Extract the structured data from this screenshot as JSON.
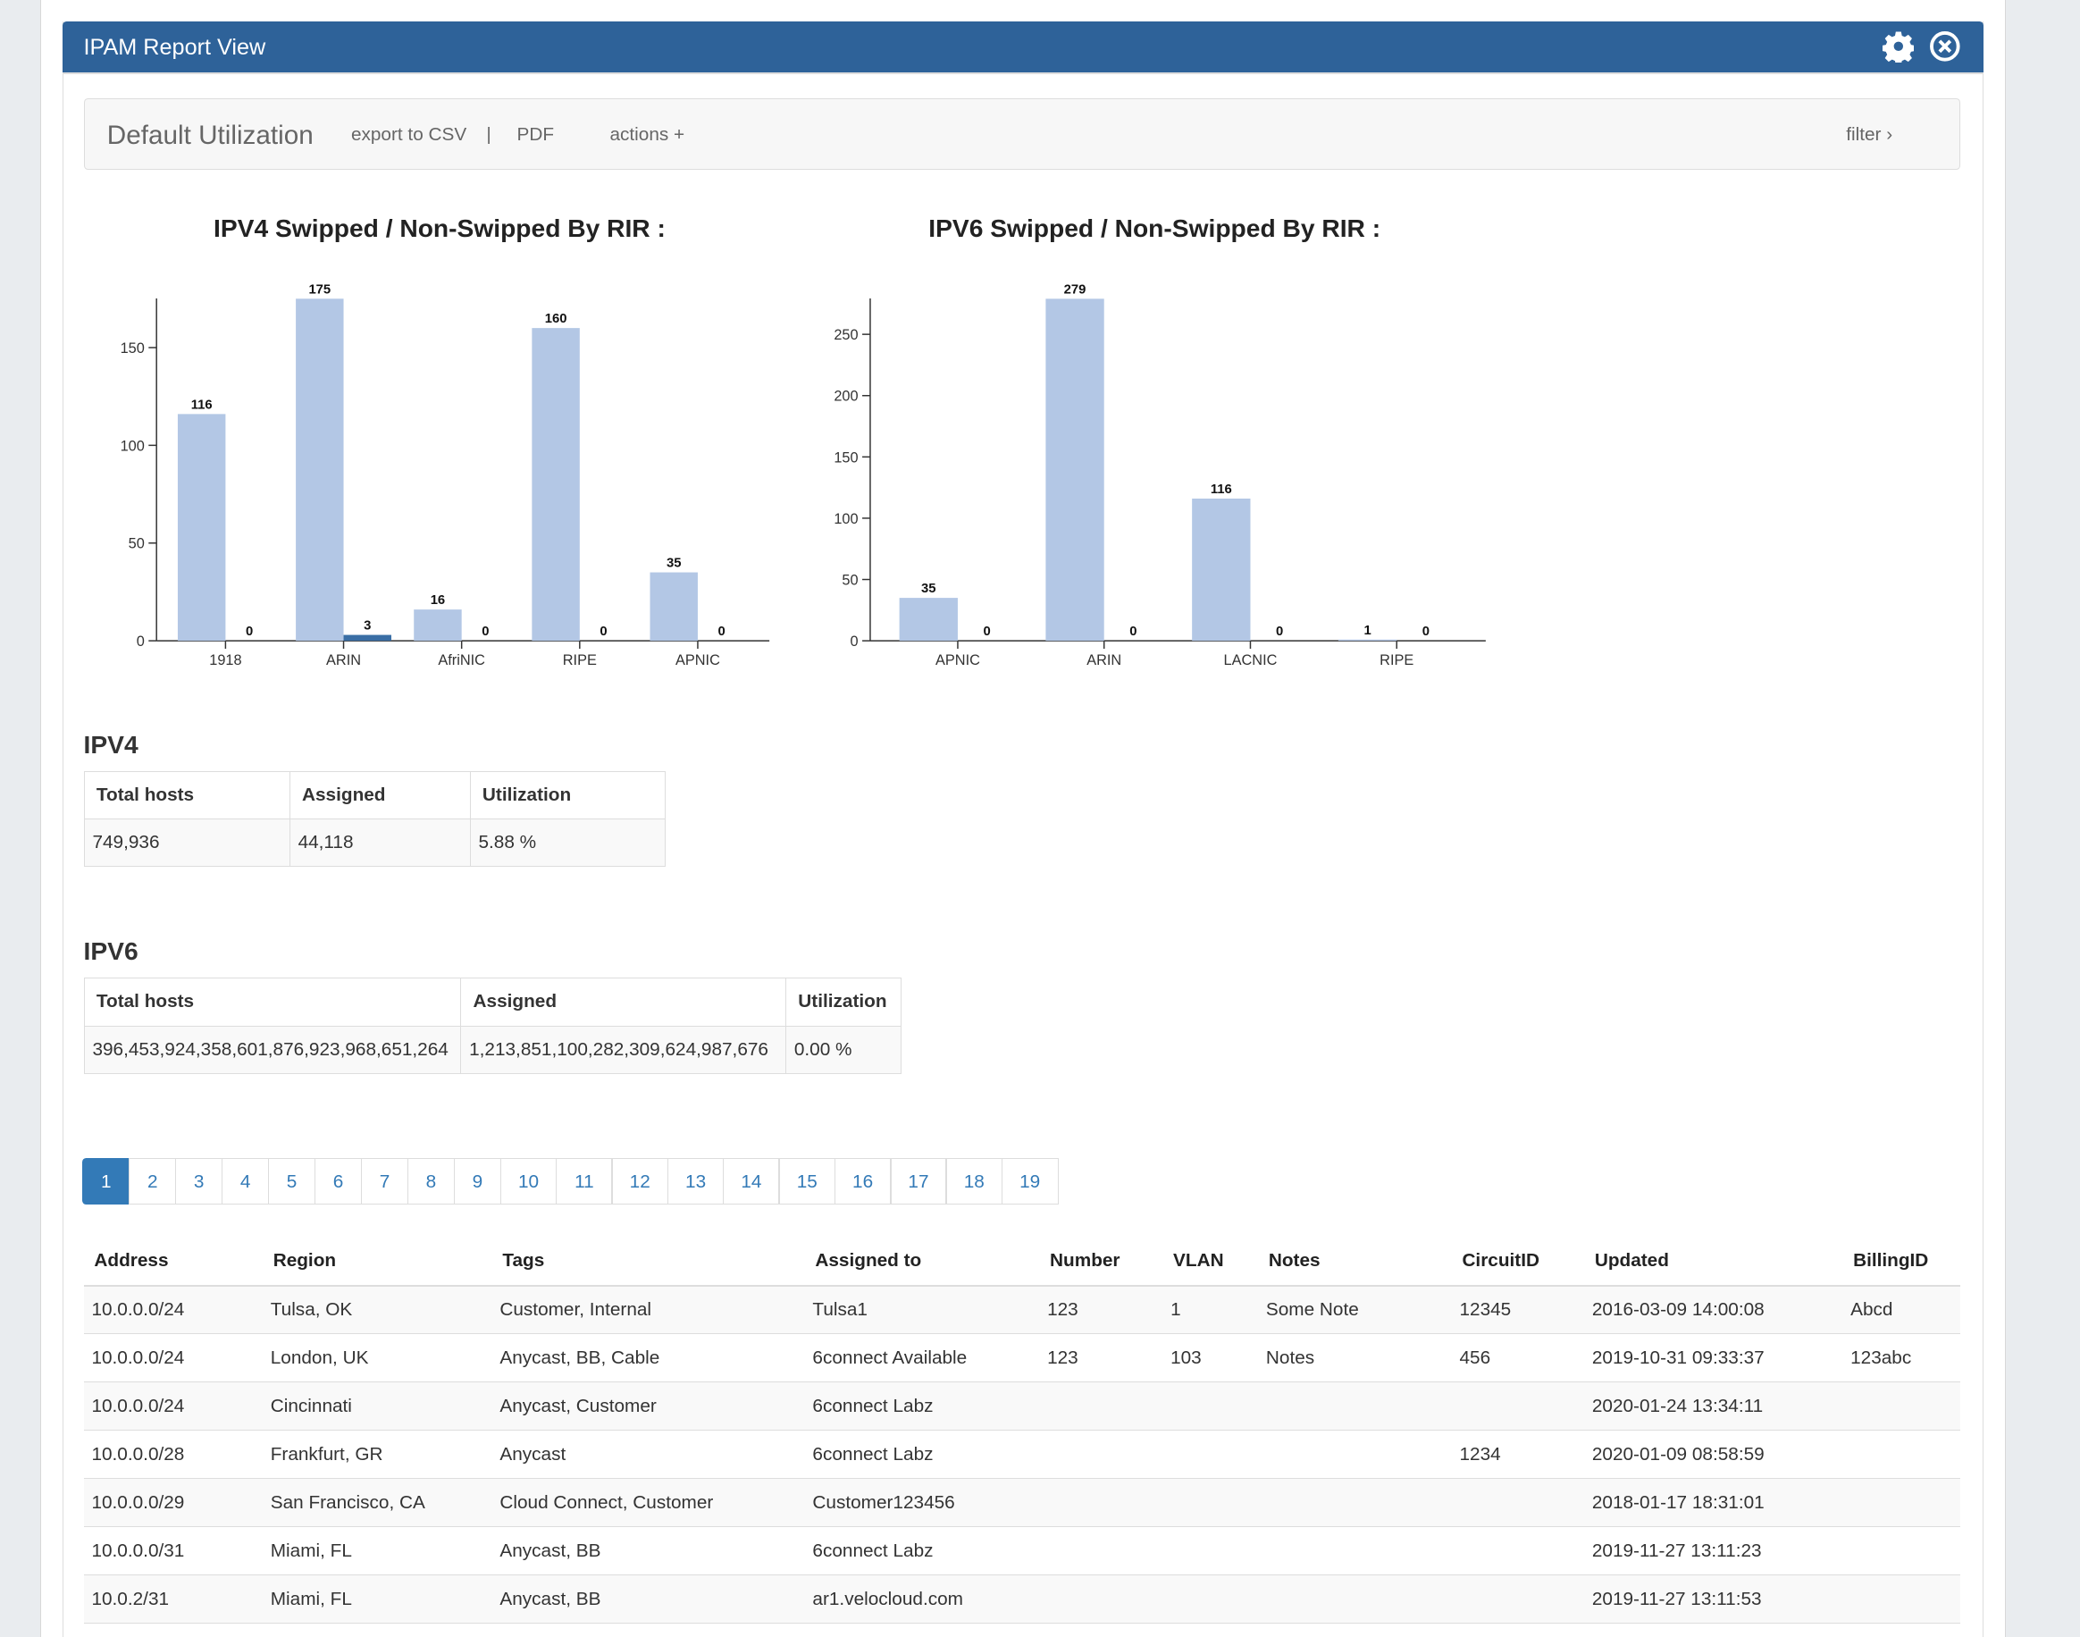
{
  "header": {
    "title": "IPAM Report View",
    "icons": [
      "gear-icon",
      "close-circle-icon"
    ],
    "color": "#2e6299"
  },
  "toolbar": {
    "title": "Default Utilization",
    "export_csv": "export to CSV",
    "separator": "|",
    "pdf": "PDF",
    "actions": "actions +",
    "filter": "filter"
  },
  "chart_data": [
    {
      "type": "bar",
      "title": "IPV4 Swipped / Non-Swipped By RIR :",
      "categories": [
        "1918",
        "ARIN",
        "AfriNIC",
        "RIPE",
        "APNIC"
      ],
      "series": [
        {
          "values": [
            116,
            175,
            16,
            160,
            35
          ],
          "color": "#b3c7e5"
        },
        {
          "values": [
            0,
            3,
            0,
            0,
            0
          ],
          "color": "#3a6ea5"
        }
      ],
      "yticks": [
        0,
        50,
        100,
        150
      ],
      "ylim": [
        0,
        175
      ],
      "grid": false
    },
    {
      "type": "bar",
      "title": "IPV6 Swipped / Non-Swipped By RIR :",
      "categories": [
        "APNIC",
        "ARIN",
        "LACNIC",
        "RIPE"
      ],
      "series": [
        {
          "values": [
            35,
            279,
            116,
            1
          ],
          "color": "#b3c7e5"
        },
        {
          "values": [
            0,
            0,
            0,
            0
          ],
          "color": "#3a6ea5"
        }
      ],
      "yticks": [
        0,
        50,
        100,
        150,
        200,
        250
      ],
      "ylim": [
        0,
        279
      ],
      "grid": false
    }
  ],
  "ipv4": {
    "heading": "IPV4",
    "headers": [
      "Total hosts",
      "Assigned",
      "Utilization"
    ],
    "values": [
      "749,936",
      "44,118",
      "5.88 %"
    ]
  },
  "ipv6": {
    "heading": "IPV6",
    "headers": [
      "Total hosts",
      "Assigned",
      "Utilization"
    ],
    "values": [
      "396,453,924,358,601,876,923,968,651,264",
      "1,213,851,100,282,309,624,987,676",
      "0.00 %"
    ]
  },
  "pagination": {
    "pages": [
      "1",
      "2",
      "3",
      "4",
      "5",
      "6",
      "7",
      "8",
      "9",
      "10",
      "11",
      "12",
      "13",
      "14",
      "15",
      "16",
      "17",
      "18",
      "19"
    ],
    "current": "1"
  },
  "table": {
    "headers": [
      "Address",
      "Region",
      "Tags",
      "Assigned to",
      "Number",
      "VLAN",
      "Notes",
      "CircuitID",
      "Updated",
      "BillingID"
    ],
    "rows": [
      [
        "10.0.0.0/24",
        "Tulsa, OK",
        "Customer, Internal",
        "Tulsa1",
        "123",
        "1",
        "Some Note",
        "12345",
        "2016-03-09 14:00:08",
        "Abcd"
      ],
      [
        "10.0.0.0/24",
        "London, UK",
        "Anycast, BB, Cable",
        "6connect Available",
        "123",
        "103",
        "Notes",
        "456",
        "2019-10-31 09:33:37",
        "123abc"
      ],
      [
        "10.0.0.0/24",
        "Cincinnati",
        "Anycast, Customer",
        "6connect Labz",
        "",
        "",
        "",
        "",
        "2020-01-24 13:34:11",
        ""
      ],
      [
        "10.0.0.0/28",
        "Frankfurt, GR",
        "Anycast",
        "6connect Labz",
        "",
        "",
        "",
        "1234",
        "2020-01-09 08:58:59",
        ""
      ],
      [
        "10.0.0.0/29",
        "San Francisco, CA",
        "Cloud Connect, Customer",
        "Customer123456",
        "",
        "",
        "",
        "",
        "2018-01-17 18:31:01",
        ""
      ],
      [
        "10.0.0.0/31",
        "Miami, FL",
        "Anycast, BB",
        "6connect Labz",
        "",
        "",
        "",
        "",
        "2019-11-27 13:11:23",
        ""
      ],
      [
        "10.0.2/31",
        "Miami, FL",
        "Anycast, BB",
        "ar1.velocloud.com",
        "",
        "",
        "",
        "",
        "2019-11-27 13:11:53",
        ""
      ]
    ]
  }
}
